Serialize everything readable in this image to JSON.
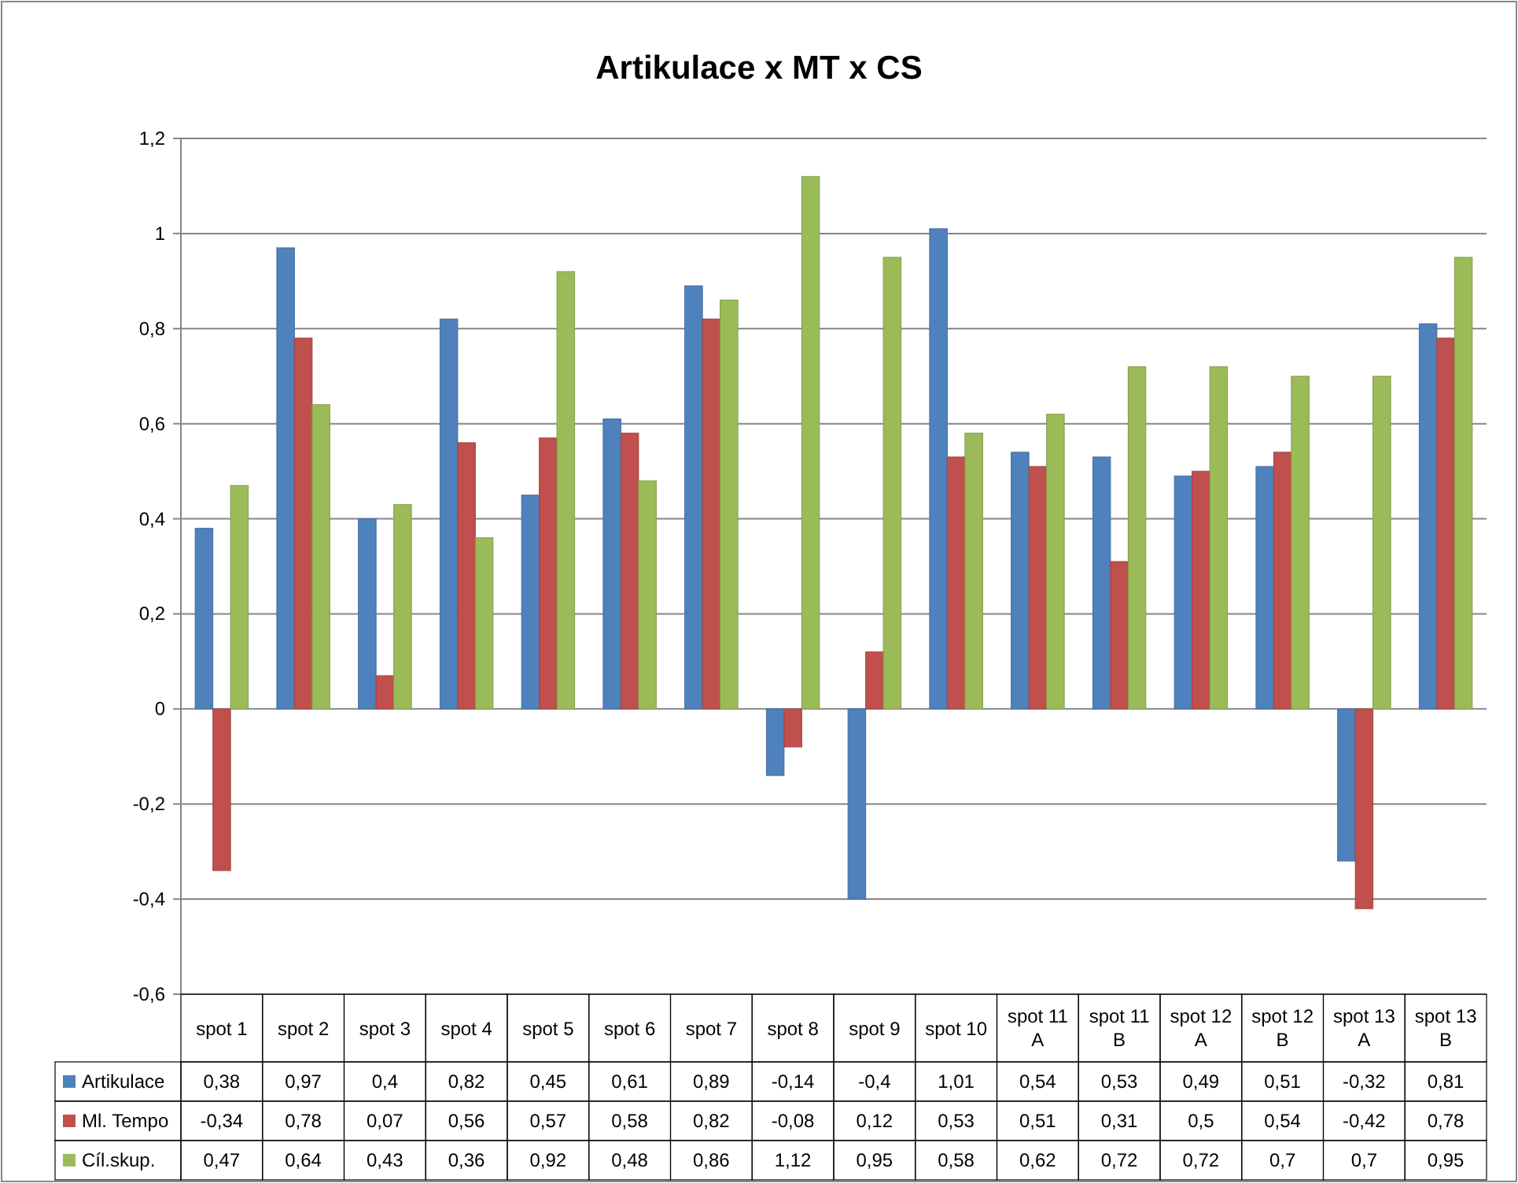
{
  "chart_data": {
    "type": "bar",
    "title": "Artikulace x MT x CS",
    "categories": [
      "spot 1",
      "spot 2",
      "spot 3",
      "spot 4",
      "spot 5",
      "spot 6",
      "spot 7",
      "spot 8",
      "spot 9",
      "spot 10",
      "spot 11 A",
      "spot 11 B",
      "spot 12 A",
      "spot 12 B",
      "spot 13 A",
      "spot 13 B"
    ],
    "series": [
      {
        "name": "Artikulace",
        "color": "#4f81bd",
        "values": [
          0.38,
          0.97,
          0.4,
          0.82,
          0.45,
          0.61,
          0.89,
          -0.14,
          -0.4,
          1.01,
          0.54,
          0.53,
          0.49,
          0.51,
          -0.32,
          0.81
        ],
        "value_labels": [
          "0,38",
          "0,97",
          "0,4",
          "0,82",
          "0,45",
          "0,61",
          "0,89",
          "-0,14",
          "-0,4",
          "1,01",
          "0,54",
          "0,53",
          "0,49",
          "0,51",
          "-0,32",
          "0,81"
        ]
      },
      {
        "name": "Ml. Tempo",
        "color": "#c0504d",
        "values": [
          -0.34,
          0.78,
          0.07,
          0.56,
          0.57,
          0.58,
          0.82,
          -0.08,
          0.12,
          0.53,
          0.51,
          0.31,
          0.5,
          0.54,
          -0.42,
          0.78
        ],
        "value_labels": [
          "-0,34",
          "0,78",
          "0,07",
          "0,56",
          "0,57",
          "0,58",
          "0,82",
          "-0,08",
          "0,12",
          "0,53",
          "0,51",
          "0,31",
          "0,5",
          "0,54",
          "-0,42",
          "0,78"
        ]
      },
      {
        "name": "Cíl.skup.",
        "color": "#9bbb59",
        "values": [
          0.47,
          0.64,
          0.43,
          0.36,
          0.92,
          0.48,
          0.86,
          1.12,
          0.95,
          0.58,
          0.62,
          0.72,
          0.72,
          0.7,
          0.7,
          0.95
        ],
        "value_labels": [
          "0,47",
          "0,64",
          "0,43",
          "0,36",
          "0,92",
          "0,48",
          "0,86",
          "1,12",
          "0,95",
          "0,58",
          "0,62",
          "0,72",
          "0,72",
          "0,7",
          "0,7",
          "0,95"
        ]
      }
    ],
    "ylim": [
      -0.6,
      1.2
    ],
    "yticks": [
      {
        "value": -0.6,
        "label": "-0,6"
      },
      {
        "value": -0.4,
        "label": "-0,4"
      },
      {
        "value": -0.2,
        "label": "-0,2"
      },
      0,
      {
        "value": 0.2,
        "label": "0,2"
      },
      {
        "value": 0.4,
        "label": "0,4"
      },
      {
        "value": 0.6,
        "label": "0,6"
      },
      {
        "value": 0.8,
        "label": "0,8"
      },
      1,
      {
        "value": 1.2,
        "label": "1,2"
      }
    ],
    "grid": "y",
    "legend": "bottom"
  }
}
